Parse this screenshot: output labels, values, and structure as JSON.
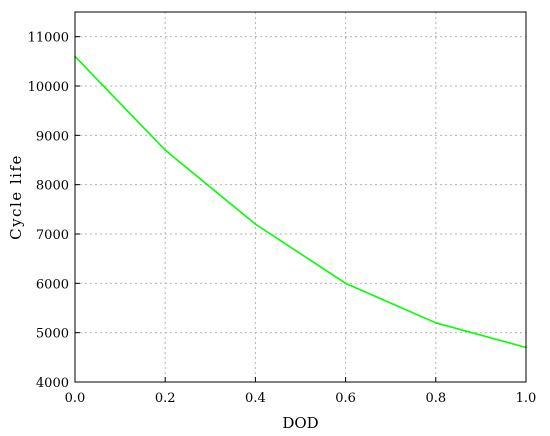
{
  "chart_data": {
    "type": "line",
    "title": "",
    "xlabel": "DOD",
    "ylabel": "Cycle life",
    "xlim": [
      0.0,
      1.0
    ],
    "ylim": [
      4000,
      11500
    ],
    "xticks": [
      0.0,
      0.2,
      0.4,
      0.6,
      0.8,
      1.0
    ],
    "xtick_labels": [
      "0.0",
      "0.2",
      "0.4",
      "0.6",
      "0.8",
      "1.0"
    ],
    "yticks": [
      4000,
      5000,
      6000,
      7000,
      8000,
      9000,
      10000,
      11000
    ],
    "ytick_labels": [
      "4000",
      "5000",
      "6000",
      "7000",
      "8000",
      "9000",
      "10000",
      "11000"
    ],
    "grid": true,
    "legend": "none",
    "series": [
      {
        "color": "#00ff00",
        "x": [
          0.0,
          0.2,
          0.4,
          0.6,
          0.8,
          1.0
        ],
        "y": [
          10600,
          8700,
          7200,
          6000,
          5200,
          4700
        ]
      }
    ]
  }
}
